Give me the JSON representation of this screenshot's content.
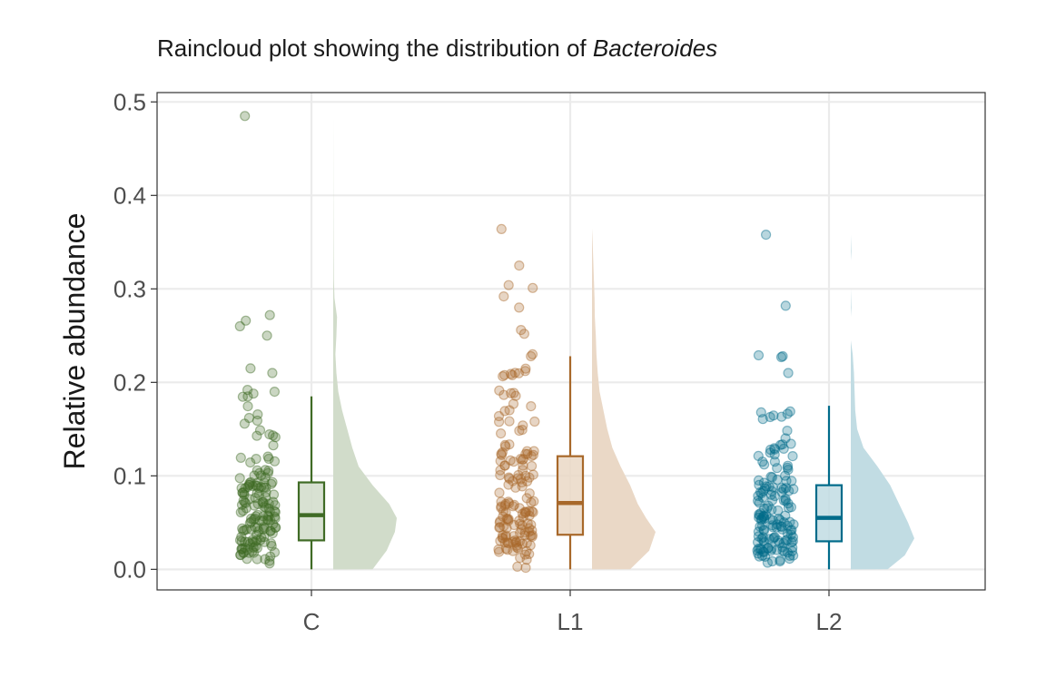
{
  "chart_data": {
    "type": "raincloud",
    "title_prefix": "Raincloud plot showing the distribution of ",
    "title_italic": "Bacteroides",
    "xlabel": "",
    "ylabel": "Relative abundance",
    "ylim": [
      -0.022,
      0.51
    ],
    "yticks": [
      "0.0",
      "0.1",
      "0.2",
      "0.3",
      "0.4",
      "0.5"
    ],
    "grid": true,
    "legend": "none",
    "categories": [
      "C",
      "L1",
      "L2"
    ],
    "groups": [
      {
        "name": "C",
        "color": "#3f6b25",
        "fill": "#d1dcca",
        "box": {
          "min": 0.0,
          "q1": 0.031,
          "median": 0.058,
          "q3": 0.093,
          "max": 0.185
        },
        "outliers": [
          0.485,
          0.272,
          0.266,
          0.26,
          0.25,
          0.215,
          0.21,
          0.192,
          0.19,
          0.188,
          0.185
        ],
        "density": [
          [
            0.0,
            0.62
          ],
          [
            0.02,
            0.84
          ],
          [
            0.04,
            0.97
          ],
          [
            0.055,
            1.0
          ],
          [
            0.07,
            0.88
          ],
          [
            0.09,
            0.62
          ],
          [
            0.11,
            0.4
          ],
          [
            0.13,
            0.3
          ],
          [
            0.15,
            0.22
          ],
          [
            0.17,
            0.14
          ],
          [
            0.19,
            0.08
          ],
          [
            0.21,
            0.05
          ],
          [
            0.23,
            0.035
          ],
          [
            0.25,
            0.05
          ],
          [
            0.27,
            0.06
          ],
          [
            0.29,
            0.02
          ],
          [
            0.31,
            0.01
          ],
          [
            0.35,
            0.005
          ],
          [
            0.4,
            0.003
          ],
          [
            0.45,
            0.002
          ],
          [
            0.485,
            0.0
          ]
        ]
      },
      {
        "name": "L1",
        "color": "#a8682a",
        "fill": "#ead8c6",
        "box": {
          "min": 0.0,
          "q1": 0.037,
          "median": 0.071,
          "q3": 0.121,
          "max": 0.228
        },
        "outliers": [
          0.364,
          0.325,
          0.304,
          0.301,
          0.292,
          0.28,
          0.256,
          0.252,
          0.23,
          0.228
        ],
        "density": [
          [
            0.0,
            0.6
          ],
          [
            0.02,
            0.9
          ],
          [
            0.04,
            1.0
          ],
          [
            0.055,
            0.85
          ],
          [
            0.07,
            0.72
          ],
          [
            0.09,
            0.6
          ],
          [
            0.11,
            0.45
          ],
          [
            0.13,
            0.32
          ],
          [
            0.15,
            0.24
          ],
          [
            0.17,
            0.18
          ],
          [
            0.19,
            0.12
          ],
          [
            0.21,
            0.09
          ],
          [
            0.23,
            0.07
          ],
          [
            0.25,
            0.06
          ],
          [
            0.27,
            0.045
          ],
          [
            0.29,
            0.04
          ],
          [
            0.31,
            0.03
          ],
          [
            0.33,
            0.02
          ],
          [
            0.35,
            0.01
          ],
          [
            0.365,
            0.0
          ]
        ]
      },
      {
        "name": "L2",
        "color": "#006b8a",
        "fill": "#c1dce3",
        "box": {
          "min": 0.0,
          "q1": 0.03,
          "median": 0.055,
          "q3": 0.09,
          "max": 0.175
        },
        "outliers": [
          0.358,
          0.282,
          0.229,
          0.228,
          0.227,
          0.21
        ],
        "density": [
          [
            0.0,
            0.58
          ],
          [
            0.015,
            0.85
          ],
          [
            0.033,
            1.0
          ],
          [
            0.05,
            0.9
          ],
          [
            0.07,
            0.76
          ],
          [
            0.09,
            0.62
          ],
          [
            0.11,
            0.42
          ],
          [
            0.13,
            0.2
          ],
          [
            0.15,
            0.1
          ],
          [
            0.17,
            0.07
          ],
          [
            0.19,
            0.06
          ],
          [
            0.21,
            0.05
          ],
          [
            0.23,
            0.03
          ],
          [
            0.245,
            0.0
          ],
          [
            0.27,
            0.0
          ],
          [
            0.28,
            0.01
          ],
          [
            0.3,
            0.0
          ],
          [
            0.33,
            0.0
          ],
          [
            0.34,
            0.01
          ],
          [
            0.358,
            0.0
          ]
        ]
      }
    ]
  }
}
